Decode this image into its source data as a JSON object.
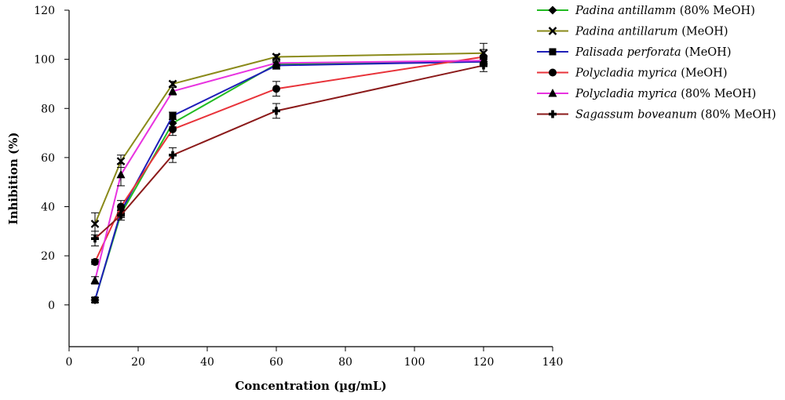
{
  "chart_data": {
    "type": "line",
    "title": "",
    "xlabel": "Concentration (µg/mL)",
    "ylabel": "Inhibition (%)",
    "xlim": [
      0,
      140
    ],
    "ylim": [
      -17,
      120
    ],
    "x_ticks": [
      "0",
      "20",
      "40",
      "60",
      "80",
      "100",
      "120",
      "140"
    ],
    "y_ticks": [
      "0",
      "20",
      "40",
      "60",
      "80",
      "100",
      "120"
    ],
    "grid": false,
    "legend_position": "top-right",
    "x": [
      7.5,
      15,
      30,
      60,
      120
    ],
    "series": [
      {
        "name": "Padina antillamm",
        "suffix": "(80% MeOH)",
        "color": "#22bb22",
        "marker": "diamond",
        "values": [
          2,
          37,
          74,
          98,
          99
        ],
        "errors": [
          1,
          1.5,
          1.5,
          1.5,
          1.5
        ]
      },
      {
        "name": "Padina antillarum",
        "suffix": "(MeOH)",
        "color": "#8a8a1a",
        "marker": "x",
        "values": [
          33,
          58.5,
          90,
          101,
          102.5
        ],
        "errors": [
          4.5,
          2.5,
          1,
          1,
          4
        ]
      },
      {
        "name": "Palisada perforata",
        "suffix": "(MeOH)",
        "color": "#1f1fb8",
        "marker": "square",
        "values": [
          2,
          38,
          77,
          97.5,
          99
        ],
        "errors": [
          1,
          2,
          1.5,
          1.5,
          2
        ]
      },
      {
        "name": "Polycladia myrica",
        "suffix": "(MeOH)",
        "color": "#e8333a",
        "marker": "circle",
        "values": [
          17.5,
          40,
          71.5,
          88,
          101
        ],
        "errors": [
          1,
          2.5,
          2.5,
          3,
          3
        ]
      },
      {
        "name": "Polycladia myrica",
        "suffix": "(80% MeOH)",
        "color": "#e833e0",
        "marker": "triangle",
        "values": [
          10,
          53,
          87,
          98.5,
          99.5
        ],
        "errors": [
          1.5,
          4.5,
          1.5,
          2,
          2
        ]
      },
      {
        "name": "Sagassum boveanum",
        "suffix": "(80% MeOH)",
        "color": "#8b1a1a",
        "marker": "plus",
        "values": [
          27,
          36.5,
          61,
          79,
          97.5
        ],
        "errors": [
          3,
          2,
          3,
          3,
          2.5
        ]
      }
    ]
  }
}
